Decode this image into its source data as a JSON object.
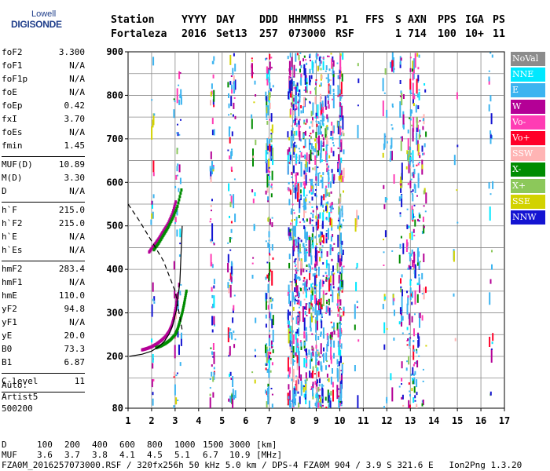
{
  "logo": {
    "top": "Lowell",
    "bottom": "DIGISONDE"
  },
  "header": {
    "columns": [
      "Station",
      "YYYY",
      "DAY",
      "DDD",
      "HHMMSS",
      "P1",
      "FFS",
      "S",
      "AXN",
      "PPS",
      "IGA",
      "PS"
    ],
    "values": [
      "Fortaleza",
      "2016",
      "Set13",
      "257",
      "073000",
      "RSF",
      "",
      "1",
      "714",
      "100",
      "10+",
      "11"
    ]
  },
  "params": [
    {
      "label": "foF2",
      "value": "3.300"
    },
    {
      "label": "foF1",
      "value": "N/A"
    },
    {
      "label": "foF1p",
      "value": "N/A"
    },
    {
      "label": "foE",
      "value": "N/A"
    },
    {
      "label": "foEp",
      "value": "0.42"
    },
    {
      "label": "fxI",
      "value": "3.70"
    },
    {
      "label": "foEs",
      "value": "N/A"
    },
    {
      "label": "fmin",
      "value": "1.45"
    },
    {
      "sep": true
    },
    {
      "label": "MUF(D)",
      "value": "10.89"
    },
    {
      "label": "M(D)",
      "value": "3.30"
    },
    {
      "label": "D",
      "value": "N/A"
    },
    {
      "sep": true
    },
    {
      "label": "h`F",
      "value": "215.0"
    },
    {
      "label": "h`F2",
      "value": "215.0"
    },
    {
      "label": "h`E",
      "value": "N/A"
    },
    {
      "label": "h`Es",
      "value": "N/A"
    },
    {
      "sep": true
    },
    {
      "label": "hmF2",
      "value": "283.4"
    },
    {
      "label": "hmF1",
      "value": "N/A"
    },
    {
      "label": "hmE",
      "value": "110.0"
    },
    {
      "label": "yF2",
      "value": "94.8"
    },
    {
      "label": "yF1",
      "value": "N/A"
    },
    {
      "label": "yE",
      "value": "20.0"
    },
    {
      "label": "B0",
      "value": "73.3"
    },
    {
      "label": "B1",
      "value": "6.87"
    },
    {
      "sep": true
    },
    {
      "label": "C-level",
      "value": "11"
    },
    {
      "sep": true
    }
  ],
  "extra": [
    "Auto:",
    "Artist5",
    "500200"
  ],
  "legend": [
    {
      "label": "NoVal",
      "color": "#8c8c8c"
    },
    {
      "label": "NNE",
      "color": "#00e8ff"
    },
    {
      "label": "E",
      "color": "#3cb4f0"
    },
    {
      "label": "W",
      "color": "#b40096"
    },
    {
      "label": "Vo-",
      "color": "#ff3cb4"
    },
    {
      "label": "Vo+",
      "color": "#ff0028"
    },
    {
      "label": "SSW",
      "color": "#ffb4b4"
    },
    {
      "label": "X-",
      "color": "#008c00"
    },
    {
      "label": "X+",
      "color": "#8cc85a"
    },
    {
      "label": "SSE",
      "color": "#d2d200"
    },
    {
      "label": "NNW",
      "color": "#1414d2"
    }
  ],
  "bottom": {
    "d_label": "D",
    "d_values": [
      "100",
      "200",
      "400",
      "600",
      "800",
      "1000",
      "1500",
      "3000",
      "[km]"
    ],
    "muf_label": "MUF",
    "muf_values": [
      "3.6",
      "3.7",
      "3.8",
      "4.1",
      "4.5",
      "5.1",
      "6.7",
      "10.9",
      "[MHz]"
    ],
    "footer": "FZA0M_2016257073000.RSF / 320fx256h 50 kHz 5.0 km / DPS-4 FZA0M 904 / 3.9 S 321.6 E   Ion2Png 1.3.20"
  },
  "chart_data": {
    "type": "scatter",
    "title": "",
    "xlabel": "",
    "ylabel": "",
    "xlim": [
      1,
      17
    ],
    "ylim": [
      80,
      900
    ],
    "xticks": [
      1,
      2,
      3,
      4,
      5,
      6,
      7,
      8,
      9,
      10,
      11,
      12,
      13,
      14,
      15,
      16,
      17
    ],
    "yticks": [
      80,
      200,
      300,
      400,
      500,
      600,
      700,
      800,
      900
    ],
    "grid": true,
    "traces": [
      {
        "name": "O-trace F2",
        "color": "#b40096",
        "x": [
          1.6,
          1.8,
          2.0,
          2.2,
          2.4,
          2.6,
          2.75,
          2.85,
          2.95,
          3.05,
          3.1
        ],
        "y": [
          215,
          218,
          222,
          228,
          236,
          246,
          258,
          270,
          290,
          320,
          345
        ]
      },
      {
        "name": "X-trace F2",
        "color": "#008c00",
        "x": [
          2.2,
          2.4,
          2.6,
          2.8,
          3.0,
          3.1,
          3.2,
          3.3,
          3.4,
          3.5
        ],
        "y": [
          220,
          224,
          230,
          238,
          250,
          262,
          280,
          300,
          325,
          355
        ]
      },
      {
        "name": "2F O-trace",
        "color": "#b40096",
        "x": [
          1.9,
          2.1,
          2.3,
          2.5,
          2.7,
          2.9,
          3.05
        ],
        "y": [
          440,
          455,
          470,
          488,
          505,
          530,
          560
        ]
      },
      {
        "name": "2F X-trace",
        "color": "#008c00",
        "x": [
          2.1,
          2.3,
          2.5,
          2.7,
          2.9,
          3.1,
          3.3
        ],
        "y": [
          445,
          460,
          478,
          496,
          518,
          545,
          590
        ]
      }
    ],
    "profile": {
      "name": "Electron density profile",
      "x": [
        1.05,
        1.6,
        2.0,
        2.3,
        2.55,
        2.75,
        2.9,
        3.05,
        3.2,
        3.3
      ],
      "y": [
        200,
        205,
        212,
        222,
        235,
        252,
        272,
        305,
        370,
        500
      ]
    },
    "muf_curve": {
      "name": "MUF curve",
      "x": [
        1.0,
        1.5,
        2.0,
        2.5,
        3.0,
        3.3
      ],
      "y": [
        550,
        510,
        465,
        420,
        350,
        260
      ]
    }
  }
}
